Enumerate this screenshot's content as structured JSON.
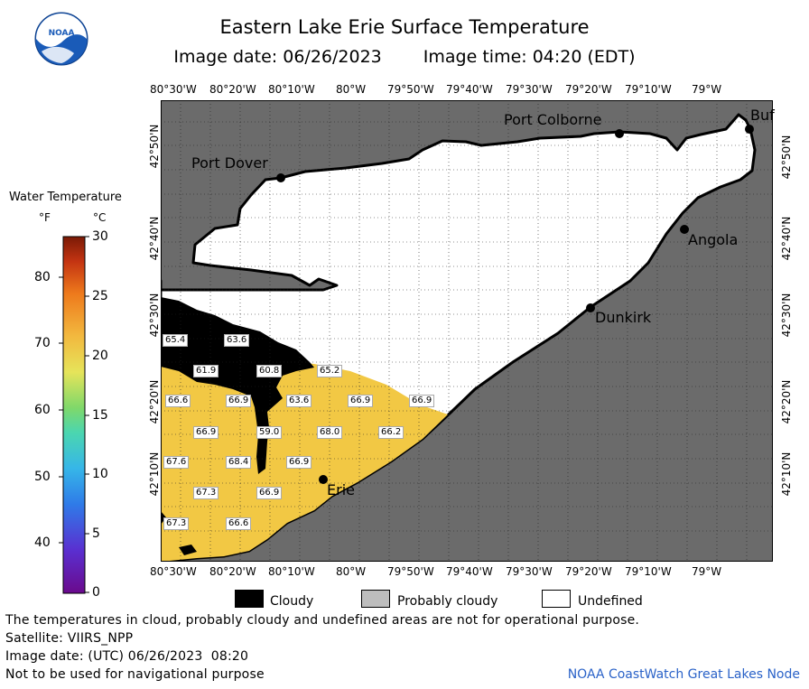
{
  "title": "Eastern Lake Erie Surface Temperature",
  "image_date_label": "Image date: 06/26/2023",
  "image_time_label": "Image time: 04:20 (EDT)",
  "logo_text": "NOAA",
  "colorbar": {
    "title": "Water Temperature",
    "unit_f": "°F",
    "unit_c": "°C",
    "f_ticks": [
      "80",
      "70",
      "60",
      "50",
      "40"
    ],
    "c_ticks": [
      "30",
      "25",
      "20",
      "15",
      "10",
      "5",
      "0"
    ]
  },
  "axes": {
    "lon_ticks": [
      "80°30'W",
      "80°20'W",
      "80°10'W",
      "80°W",
      "79°50'W",
      "79°40'W",
      "79°30'W",
      "79°20'W",
      "79°10'W",
      "79°W"
    ],
    "lat_ticks": [
      "42°50'N",
      "42°40'N",
      "42°30'N",
      "42°20'N",
      "42°10'N"
    ]
  },
  "places": [
    "Port Colborne",
    "Port Dover",
    "Angola",
    "Dunkirk",
    "Erie",
    "Buf"
  ],
  "temp_labels": [
    "65.4",
    "63.6",
    "61.9",
    "60.8",
    "65.2",
    "66.6",
    "66.9",
    "63.6",
    "66.9",
    "66.9",
    "66.9",
    "59.0",
    "68.0",
    "66.2",
    "67.6",
    "68.4",
    "66.9",
    "67.3",
    "66.9",
    "67.3",
    "66.6"
  ],
  "legend": {
    "cloudy": "Cloudy",
    "probably_cloudy": "Probably cloudy",
    "undefined": "Undefined"
  },
  "colors": {
    "land": "#6b6b6b",
    "cloud": "#000000",
    "water_warm": "#f2c844",
    "undefined": "#ffffff",
    "probably_cloudy": "#bdbdbd"
  },
  "footer": {
    "disclaimer": "The temperatures in cloud, probably cloudy and undefined areas are not for operational purpose.",
    "satellite": "Satellite: VIIRS_NPP",
    "utc_date": "Image date: (UTC) 06/26/2023  08:20",
    "nav_note": "Not to be used for navigational purpose",
    "credit": "NOAA CoastWatch Great Lakes Node"
  }
}
